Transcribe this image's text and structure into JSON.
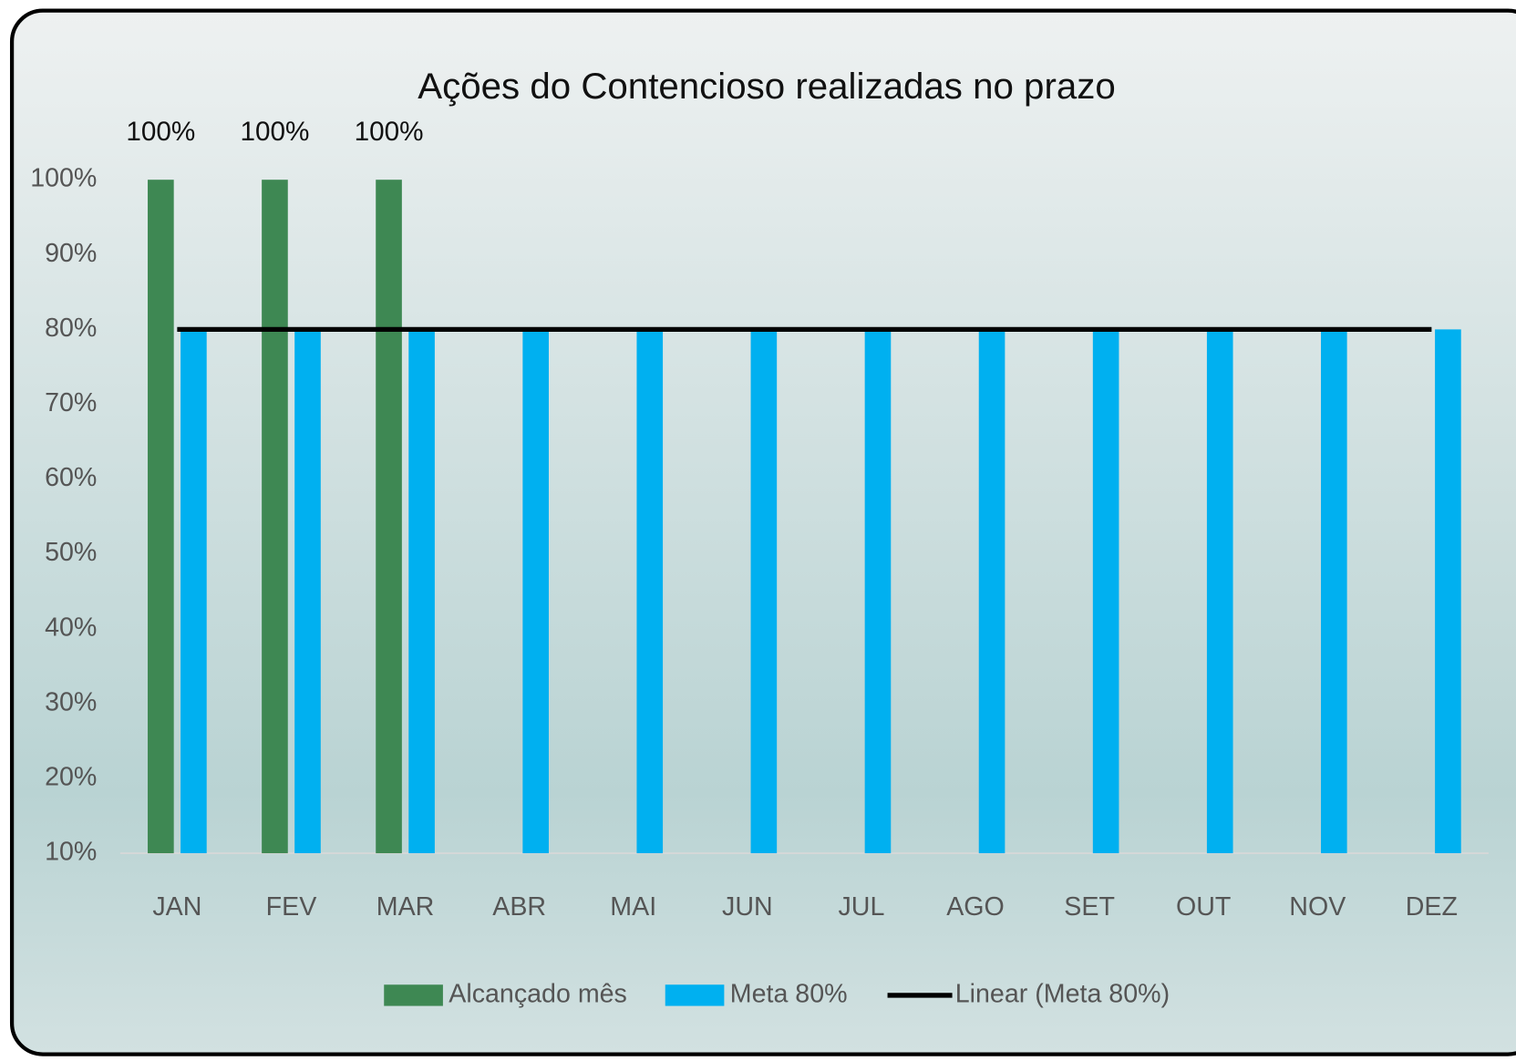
{
  "chart_data": {
    "type": "bar",
    "title": "Ações do Contencioso realizadas no prazo",
    "categories": [
      "JAN",
      "FEV",
      "MAR",
      "ABR",
      "MAI",
      "JUN",
      "JUL",
      "AGO",
      "SET",
      "OUT",
      "NOV",
      "DEZ"
    ],
    "series": [
      {
        "name": "Alcançado mês",
        "color": "#3e8853",
        "type": "bar",
        "values": [
          100,
          100,
          100,
          null,
          null,
          null,
          null,
          null,
          null,
          null,
          null,
          null
        ],
        "value_labels": [
          "100%",
          "100%",
          "100%",
          null,
          null,
          null,
          null,
          null,
          null,
          null,
          null,
          null
        ]
      },
      {
        "name": "Meta 80%",
        "color": "#00b0f0",
        "type": "bar",
        "values": [
          80,
          80,
          80,
          80,
          80,
          80,
          80,
          80,
          80,
          80,
          80,
          80
        ]
      },
      {
        "name": "Linear (Meta 80%)",
        "color": "#000000",
        "type": "line",
        "values": [
          80,
          80,
          80,
          80,
          80,
          80,
          80,
          80,
          80,
          80,
          80,
          80
        ]
      }
    ],
    "ylim": [
      10,
      100
    ],
    "yticks": [
      {
        "value": 10,
        "label": "10%"
      },
      {
        "value": 20,
        "label": "20%"
      },
      {
        "value": 30,
        "label": "30%"
      },
      {
        "value": 40,
        "label": "40%"
      },
      {
        "value": 50,
        "label": "50%"
      },
      {
        "value": 60,
        "label": "60%"
      },
      {
        "value": 70,
        "label": "70%"
      },
      {
        "value": 80,
        "label": "80%"
      },
      {
        "value": 90,
        "label": "90%"
      },
      {
        "value": 100,
        "label": "100%"
      }
    ],
    "legend": "bottom"
  }
}
